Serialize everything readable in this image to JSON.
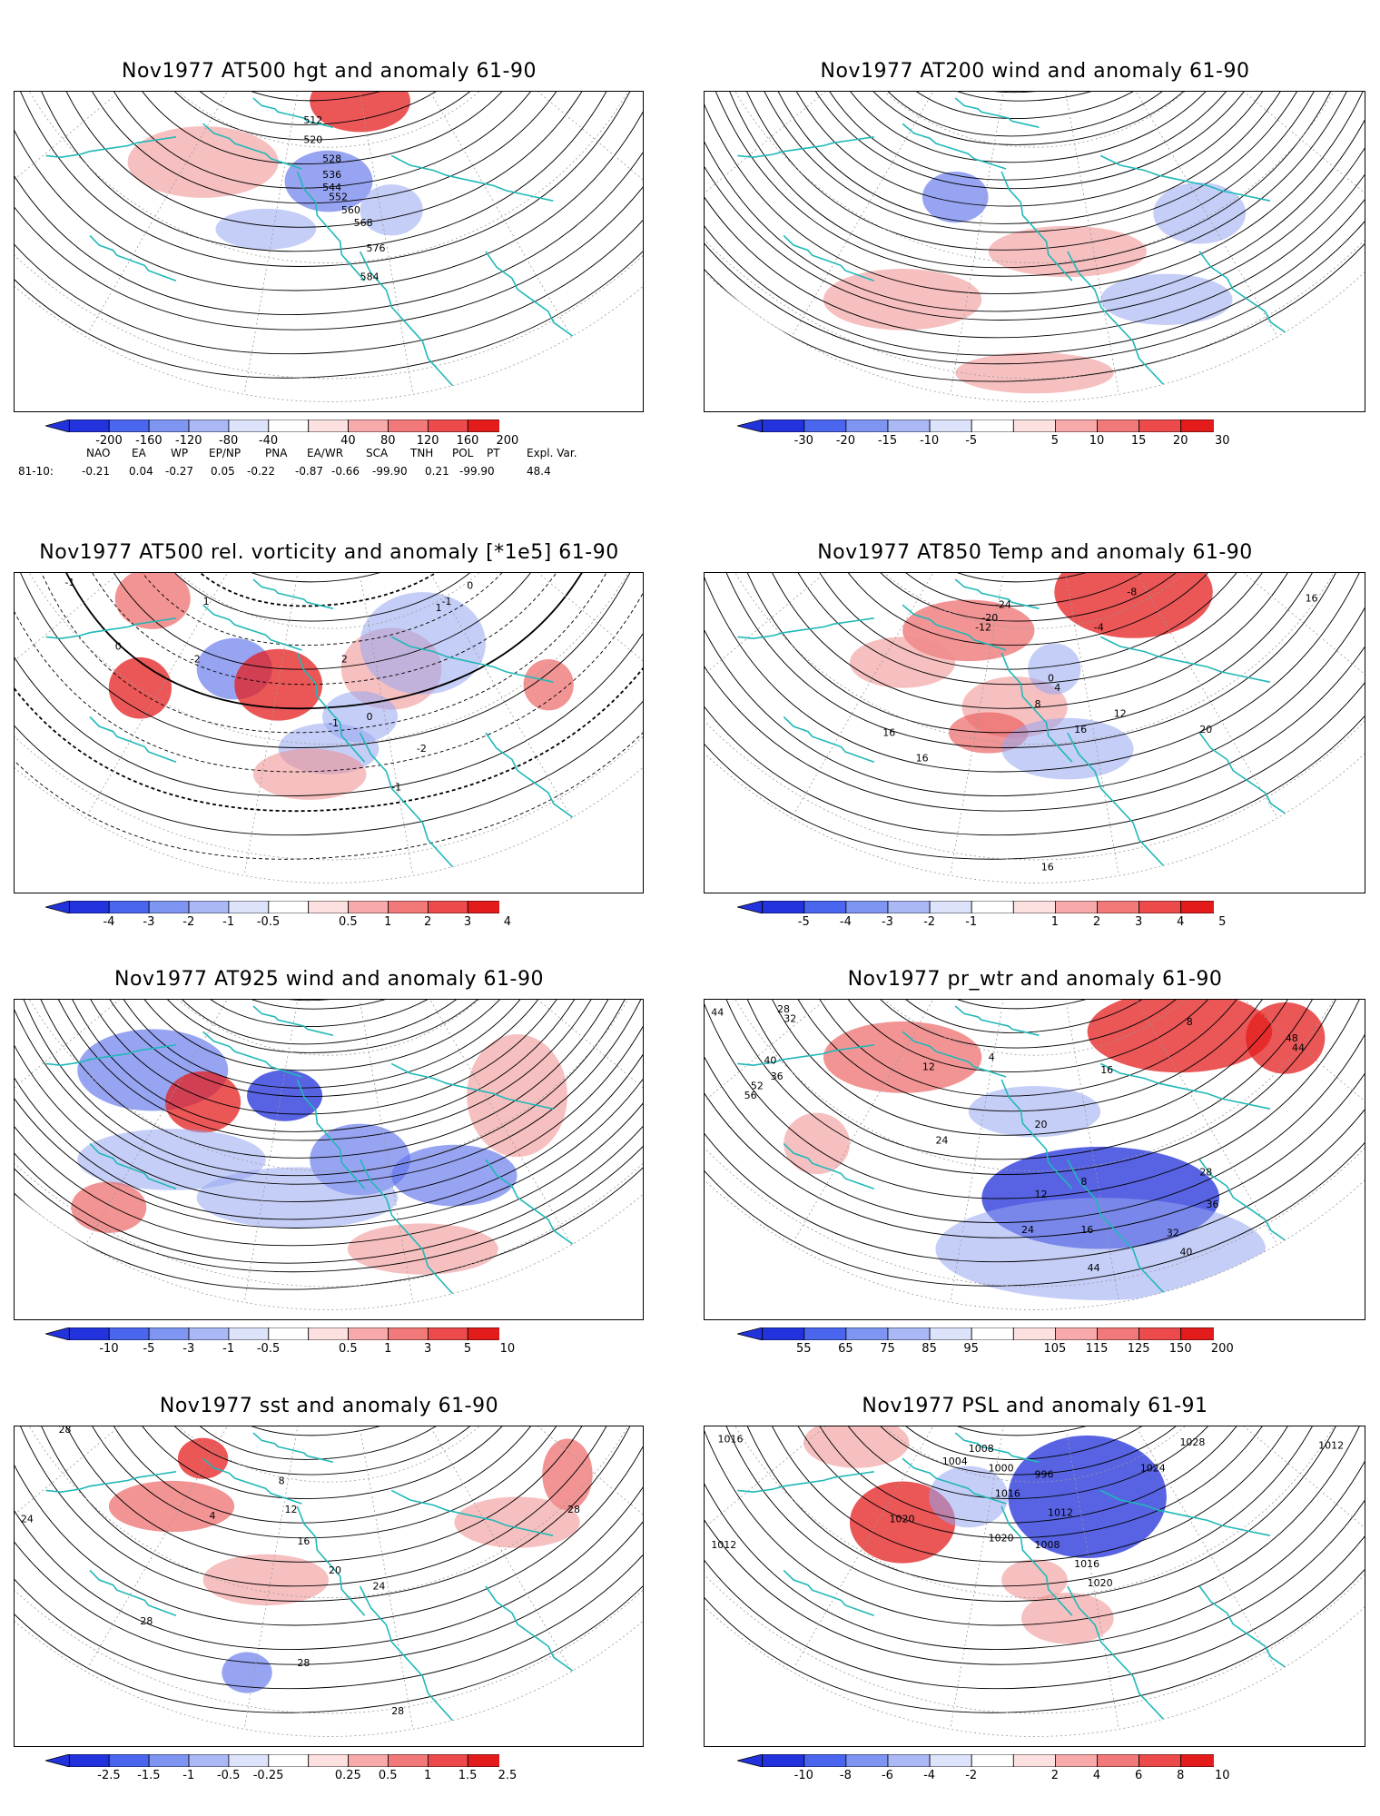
{
  "panels": [
    {
      "id": "p1",
      "title": "Nov1977 AT500 hgt and anomaly 61-90",
      "ticks": [
        "-200",
        "-160",
        "-120",
        "-80",
        "-40",
        "40",
        "80",
        "120",
        "160",
        "200"
      ],
      "labels": [
        "512",
        "520",
        "528",
        "536",
        "544",
        "552",
        "560",
        "568",
        "576",
        "584"
      ]
    },
    {
      "id": "p2",
      "title": "Nov1977 AT200 wind and anomaly 61-90",
      "ticks": [
        "-30",
        "-20",
        "-15",
        "-10",
        "-5",
        "5",
        "10",
        "15",
        "20",
        "30"
      ],
      "labels": []
    },
    {
      "id": "p3",
      "title": "Nov1977 AT500 rel. vorticity and anomaly [*1e5] 61-90",
      "ticks": [
        "-4",
        "-3",
        "-2",
        "-1",
        "-0.5",
        "0.5",
        "1",
        "2",
        "3",
        "4"
      ],
      "labels": [
        "-1",
        "1",
        "-2",
        "0",
        "2",
        "-1",
        "1",
        "0",
        "-1",
        "-2",
        "0",
        "-1"
      ]
    },
    {
      "id": "p4",
      "title": "Nov1977 AT850 Temp and anomaly 61-90",
      "ticks": [
        "-5",
        "-4",
        "-3",
        "-2",
        "-1",
        "1",
        "2",
        "3",
        "4",
        "5"
      ],
      "labels": [
        "-24",
        "-20",
        "-12",
        "-8",
        "-4",
        "0",
        "4",
        "8",
        "12",
        "16",
        "16",
        "16",
        "20",
        "16",
        "16"
      ]
    },
    {
      "id": "p5",
      "title": "Nov1977 AT925 wind and anomaly 61-90",
      "ticks": [
        "-10",
        "-5",
        "-3",
        "-1",
        "-0.5",
        "0.5",
        "1",
        "3",
        "5",
        "10"
      ],
      "labels": []
    },
    {
      "id": "p6",
      "title": "Nov1977 pr_wtr and anomaly 61-90",
      "ticks": [
        "55",
        "65",
        "75",
        "85",
        "95",
        "105",
        "115",
        "125",
        "150",
        "200"
      ],
      "labels": [
        "44",
        "32",
        "28",
        "40",
        "36",
        "52",
        "56",
        "48",
        "44",
        "8",
        "4",
        "12",
        "16",
        "20",
        "24",
        "8",
        "12",
        "16",
        "24",
        "28",
        "32",
        "36",
        "40",
        "44"
      ]
    },
    {
      "id": "p7",
      "title": "Nov1977 sst and anomaly 61-90",
      "ticks": [
        "-2.5",
        "-1.5",
        "-1",
        "-0.5",
        "-0.25",
        "0.25",
        "0.5",
        "1",
        "1.5",
        "2.5"
      ],
      "labels": [
        "28",
        "24",
        "4",
        "8",
        "12",
        "16",
        "20",
        "24",
        "28",
        "28",
        "28",
        "28"
      ]
    },
    {
      "id": "p8",
      "title": "Nov1977 PSL and anomaly 61-91",
      "ticks": [
        "-10",
        "-8",
        "-6",
        "-4",
        "-2",
        "2",
        "4",
        "6",
        "8",
        "10"
      ],
      "labels": [
        "1016",
        "1008",
        "1004",
        "1000",
        "996",
        "1020",
        "1012",
        "1016",
        "1020",
        "1024",
        "1028",
        "1012",
        "1016",
        "1020",
        "1008",
        "1012"
      ]
    }
  ],
  "teleconnection": {
    "headers": [
      "NAO",
      "EA",
      "WP",
      "EP/NP",
      "PNA",
      "EA/WR",
      "SCA",
      "TNH",
      "POL",
      "PT",
      "Expl. Var."
    ],
    "row_label": "81-10:",
    "values": [
      "-0.21",
      "0.04",
      "-0.27",
      "0.05",
      "-0.22",
      "-0.87",
      "-0.66",
      "-99.90",
      "0.21",
      "-99.90",
      "48.4"
    ]
  },
  "colors": {
    "coast": "#20b8b8",
    "contour": "#000000",
    "grid": "#9a9a9a"
  }
}
